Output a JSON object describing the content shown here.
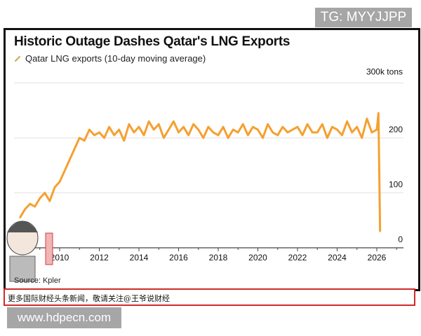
{
  "watermark_top": "TG: MYYJJPP",
  "watermark_bottom": "www.hdpecn.com",
  "banner_text": "更多国际财经头条新闻，敬请关注@王爷说财经",
  "chart_data": {
    "type": "line",
    "title": "Historic Outage Dashes Qatar's LNG Exports",
    "source": "Source: Kpler",
    "series": [
      {
        "name": "Qatar LNG exports (10-day moving average)",
        "color": "#f5a030",
        "x": [
          "2008-01",
          "2008-04",
          "2008-07",
          "2008-10",
          "2009-01",
          "2009-04",
          "2009-07",
          "2009-10",
          "2010-01",
          "2010-04",
          "2010-07",
          "2010-10",
          "2011-01",
          "2011-04",
          "2011-07",
          "2011-10",
          "2012-01",
          "2012-04",
          "2012-07",
          "2012-10",
          "2013-01",
          "2013-04",
          "2013-07",
          "2013-10",
          "2014-01",
          "2014-04",
          "2014-07",
          "2014-10",
          "2015-01",
          "2015-04",
          "2015-07",
          "2015-10",
          "2016-01",
          "2016-04",
          "2016-07",
          "2016-10",
          "2017-01",
          "2017-04",
          "2017-07",
          "2017-10",
          "2018-01",
          "2018-04",
          "2018-07",
          "2018-10",
          "2019-01",
          "2019-04",
          "2019-07",
          "2019-10",
          "2020-01",
          "2020-04",
          "2020-07",
          "2020-10",
          "2021-01",
          "2021-04",
          "2021-07",
          "2021-10",
          "2022-01",
          "2022-04",
          "2022-07",
          "2022-10",
          "2023-01",
          "2023-04",
          "2023-07",
          "2023-10",
          "2024-01",
          "2024-04",
          "2024-07",
          "2024-10",
          "2025-01",
          "2025-04",
          "2025-07",
          "2025-10",
          "2026-01",
          "2026-02",
          "2026-03"
        ],
        "values": [
          55,
          70,
          80,
          75,
          90,
          100,
          85,
          110,
          120,
          140,
          160,
          180,
          200,
          195,
          215,
          205,
          210,
          200,
          220,
          205,
          215,
          195,
          225,
          210,
          220,
          205,
          230,
          215,
          225,
          200,
          215,
          230,
          210,
          220,
          205,
          225,
          215,
          200,
          220,
          210,
          205,
          220,
          200,
          215,
          210,
          225,
          205,
          220,
          215,
          200,
          225,
          210,
          205,
          220,
          210,
          215,
          220,
          205,
          225,
          210,
          210,
          225,
          200,
          220,
          215,
          205,
          230,
          210,
          220,
          200,
          235,
          210,
          215,
          245,
          30
        ]
      }
    ],
    "unit_label": "300k tons",
    "yticks": [
      {
        "v": 0,
        "label": "0"
      },
      {
        "v": 100,
        "label": "100"
      },
      {
        "v": 200,
        "label": "200"
      },
      {
        "v": 300,
        "label": "300k tons"
      }
    ],
    "xticks": [
      "2010",
      "2012",
      "2014",
      "2016",
      "2018",
      "2020",
      "2022",
      "2024",
      "2026"
    ],
    "ylim": [
      0,
      300
    ],
    "xlim": [
      "2007-10",
      "2027-01"
    ],
    "grid": "horizontal"
  }
}
